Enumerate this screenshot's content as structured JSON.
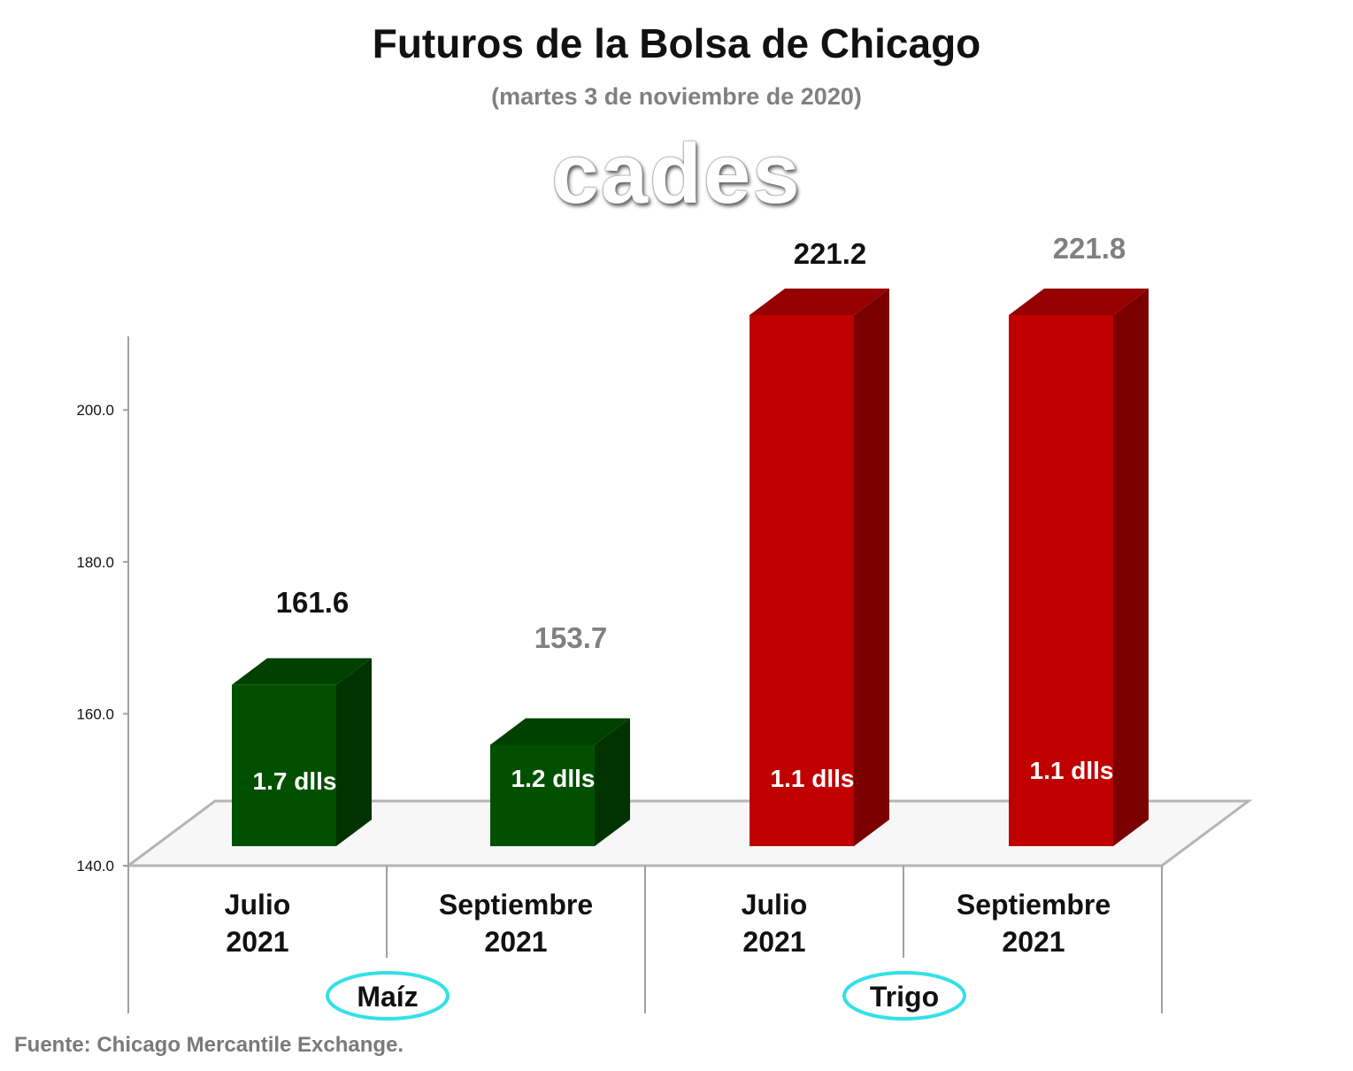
{
  "chart_data": {
    "type": "bar",
    "title": "Futuros de la Bolsa de Chicago",
    "subtitle": "(martes 3 de noviembre de 2020)",
    "watermark": "cades",
    "source": "Fuente: Chicago Mercantile Exchange.",
    "ylim": [
      140,
      210
    ],
    "yticks": [
      "140.0",
      "160.0",
      "180.0",
      "200.0"
    ],
    "grid": false,
    "categories": [
      {
        "line1": "Julio",
        "line2": "2021"
      },
      {
        "line1": "Septiembre",
        "line2": "2021"
      },
      {
        "line1": "Julio",
        "line2": "2021"
      },
      {
        "line1": "Septiembre",
        "line2": "2021"
      }
    ],
    "groups": [
      "Maíz",
      "Trigo"
    ],
    "values": [
      161.6,
      153.7,
      221.2,
      221.8
    ],
    "value_labels": [
      "161.6",
      "153.7",
      "221.2",
      "221.8"
    ],
    "inner_labels": [
      "1.7 dlls",
      "1.2 dlls",
      "1.1 dlls",
      "1.1 dlls"
    ],
    "colors": {
      "maiz_front": "#005000",
      "maiz_side": "#003300",
      "maiz_top": "#004000",
      "trigo_front": "#c00000",
      "trigo_side": "#7a0000",
      "trigo_top": "#960000",
      "value_dark": "#111111",
      "value_gray": "#808080",
      "group_ring": "#33e0e8"
    }
  }
}
